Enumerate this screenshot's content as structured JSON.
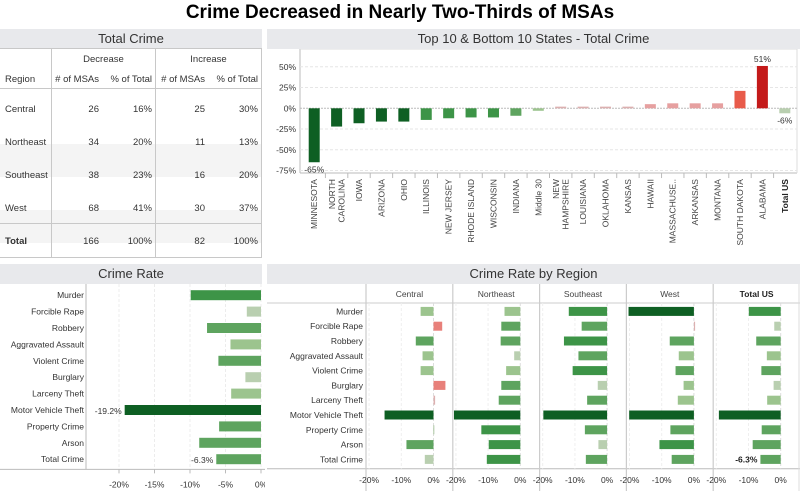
{
  "title": "Crime Decreased in Nearly Two-Thirds of MSAs",
  "colors": {
    "dark_green": "#0e5f23",
    "mid_green": "#3d9447",
    "green": "#5ea45f",
    "light_green": "#9cc48e",
    "pale_green": "#b9cfb0",
    "pale_red": "#dcb0b0",
    "light_red": "#e6a0a0",
    "red": "#e85b4a",
    "dark_red": "#c41a1a",
    "header_bg": "#e8e9ec"
  },
  "total_crime_table": {
    "title": "Total Crime",
    "group_headers": [
      "Decrease",
      "Increase"
    ],
    "columns": [
      "Region",
      "# of MSAs",
      "% of Total",
      "# of MSAs",
      "% of Total"
    ],
    "rows": [
      {
        "region": "Central",
        "dec_n": "26",
        "dec_pct": "16%",
        "inc_n": "25",
        "inc_pct": "30%"
      },
      {
        "region": "Northeast",
        "dec_n": "34",
        "dec_pct": "20%",
        "inc_n": "11",
        "inc_pct": "13%"
      },
      {
        "region": "Southeast",
        "dec_n": "38",
        "dec_pct": "23%",
        "inc_n": "16",
        "inc_pct": "20%"
      },
      {
        "region": "West",
        "dec_n": "68",
        "dec_pct": "41%",
        "inc_n": "30",
        "inc_pct": "37%"
      },
      {
        "region": "Total",
        "dec_n": "166",
        "dec_pct": "100%",
        "inc_n": "82",
        "inc_pct": "100%"
      }
    ]
  },
  "chart_data": [
    {
      "id": "states",
      "type": "bar",
      "title": "Top 10 & Bottom 10 States - Total Crime",
      "xlabel": "",
      "ylabel": "",
      "ylim": [
        -80,
        65
      ],
      "yticks": [
        50,
        25,
        0,
        -25,
        -50,
        -75
      ],
      "ytick_labels": [
        "50%",
        "25%",
        "0%",
        "-25%",
        "-50%",
        "-75%"
      ],
      "grid": true,
      "categories": [
        "MINNESOTA",
        "NORTH CAROLINA",
        "IOWA",
        "ARIZONA",
        "OHIO",
        "ILLINOIS",
        "NEW JERSEY",
        "RHODE ISLAND",
        "WISCONSIN",
        "INDIANA",
        "Middle 30",
        "NEW HAMPSHIRE",
        "LOUISIANA",
        "OKLAHOMA",
        "KANSAS",
        "HAWAII",
        "MASSACHUSE..",
        "ARKANSAS",
        "MONTANA",
        "SOUTH DAKOTA",
        "ALABAMA",
        "Total US"
      ],
      "category_lines": [
        [
          "MINNESOTA"
        ],
        [
          "NORTH",
          "CAROLINA"
        ],
        [
          "IOWA"
        ],
        [
          "ARIZONA"
        ],
        [
          "OHIO"
        ],
        [
          "ILLINOIS"
        ],
        [
          "NEW JERSEY"
        ],
        [
          "RHODE ISLAND"
        ],
        [
          "WISCONSIN"
        ],
        [
          "INDIANA"
        ],
        [
          "Middle 30"
        ],
        [
          "NEW",
          "HAMPSHIRE"
        ],
        [
          "LOUISIANA"
        ],
        [
          "OKLAHOMA"
        ],
        [
          "KANSAS"
        ],
        [
          "HAWAII"
        ],
        [
          "MASSACHUSE.."
        ],
        [
          "ARKANSAS"
        ],
        [
          "MONTANA"
        ],
        [
          "SOUTH DAKOTA"
        ],
        [
          "ALABAMA"
        ],
        [
          "Total US"
        ]
      ],
      "values": [
        -65,
        -22,
        -18,
        -16,
        -16,
        -14,
        -12,
        -11,
        -11,
        -9,
        -3,
        2,
        2,
        2,
        2,
        5,
        6,
        6,
        6,
        21,
        51,
        -6
      ],
      "data_labels": {
        "MINNESOTA": "-65%",
        "ALABAMA": "51%",
        "Total US": "-6%"
      }
    },
    {
      "id": "crime_rate",
      "type": "bar",
      "orientation": "horizontal",
      "title": "Crime Rate",
      "xlim": [
        -24,
        0.5
      ],
      "xticks": [
        -20,
        -15,
        -10,
        -5,
        0
      ],
      "xtick_labels": [
        "-20%",
        "-15%",
        "-10%",
        "-5%",
        "0%"
      ],
      "grid": true,
      "categories": [
        "Murder",
        "Forcible Rape",
        "Robbery",
        "Aggravated Assault",
        "Violent Crime",
        "Burglary",
        "Larceny Theft",
        "Motor Vehicle Theft",
        "Property Crime",
        "Arson",
        "Total Crime"
      ],
      "values": [
        -9.9,
        -2.0,
        -7.6,
        -4.3,
        -6.0,
        -2.2,
        -4.2,
        -19.2,
        -5.9,
        -8.7,
        -6.3
      ],
      "data_labels": {
        "Motor Vehicle Theft": "-19.2%",
        "Total Crime": "-6.3%"
      }
    },
    {
      "id": "crime_rate_by_region",
      "type": "bar",
      "orientation": "horizontal",
      "title": "Crime Rate by Region",
      "xlim": [
        -22,
        4
      ],
      "xticks": [
        -20,
        -10,
        0
      ],
      "xtick_labels": [
        "-20%",
        "-10%",
        "0%"
      ],
      "grid": true,
      "categories": [
        "Murder",
        "Forcible Rape",
        "Robbery",
        "Aggravated Assault",
        "Violent Crime",
        "Burglary",
        "Larceny Theft",
        "Motor Vehicle Theft",
        "Property Crime",
        "Arson",
        "Total Crime"
      ],
      "series": [
        {
          "name": "Central",
          "values": [
            -4.0,
            2.7,
            -5.5,
            -3.4,
            -4.0,
            3.7,
            0.5,
            -15.2,
            -0.1,
            -8.4,
            -2.7
          ]
        },
        {
          "name": "Northeast",
          "values": [
            -4.9,
            -5.9,
            -6.1,
            -1.9,
            -4.4,
            -5.9,
            -6.7,
            -20.6,
            -12.1,
            -9.8,
            -10.4
          ]
        },
        {
          "name": "Southeast",
          "values": [
            -11.9,
            -7.9,
            -13.4,
            -8.9,
            -10.7,
            -2.9,
            -6.2,
            -19.8,
            -6.9,
            -2.7,
            -6.6
          ]
        },
        {
          "name": "West",
          "values": [
            -20.3,
            0.3,
            -7.5,
            -4.7,
            -5.7,
            -3.2,
            -5.0,
            -20.1,
            -7.3,
            -10.7,
            -6.9
          ]
        },
        {
          "name": "Total US",
          "values": [
            -9.9,
            -2.0,
            -7.6,
            -4.3,
            -6.0,
            -2.2,
            -4.2,
            -19.2,
            -5.9,
            -8.7,
            -6.3
          ]
        }
      ],
      "data_labels": {
        "Total US|Total Crime": "-6.3%"
      }
    }
  ]
}
